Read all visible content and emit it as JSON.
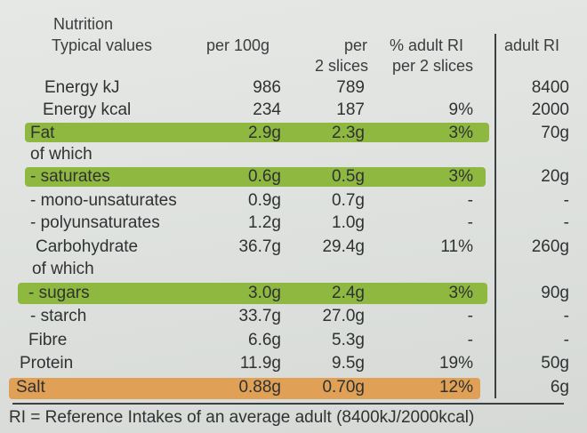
{
  "title": "Nutrition",
  "header": {
    "typical": "Typical values",
    "per100": "per 100g",
    "per2_line1": "per",
    "per2_line2": "2 slices",
    "ri_line1": "% adult RI",
    "ri_line2": "per 2 slices",
    "adult": "adult RI"
  },
  "rows": [
    {
      "name": "Energy kJ",
      "per100": "986",
      "per2": "789",
      "ri": "",
      "adult": "8400"
    },
    {
      "name": "Energy kcal",
      "per100": "234",
      "per2": "187",
      "ri": "9%",
      "adult": "2000"
    },
    {
      "name": "Fat",
      "per100": "2.9g",
      "per2": "2.3g",
      "ri": "3%",
      "adult": "70g"
    },
    {
      "name": "of which",
      "per100": "",
      "per2": "",
      "ri": "",
      "adult": ""
    },
    {
      "name": "- saturates",
      "per100": "0.6g",
      "per2": "0.5g",
      "ri": "3%",
      "adult": "20g"
    },
    {
      "name": "- mono-unsaturates",
      "per100": "0.9g",
      "per2": "0.7g",
      "ri": "-",
      "adult": "-"
    },
    {
      "name": "- polyunsaturates",
      "per100": "1.2g",
      "per2": "1.0g",
      "ri": "-",
      "adult": "-"
    },
    {
      "name": "Carbohydrate",
      "per100": "36.7g",
      "per2": "29.4g",
      "ri": "11%",
      "adult": "260g"
    },
    {
      "name": "of which",
      "per100": "",
      "per2": "",
      "ri": "",
      "adult": ""
    },
    {
      "name": "- sugars",
      "per100": "3.0g",
      "per2": "2.4g",
      "ri": "3%",
      "adult": "90g"
    },
    {
      "name": "- starch",
      "per100": "33.7g",
      "per2": "27.0g",
      "ri": "-",
      "adult": "-"
    },
    {
      "name": "Fibre",
      "per100": "6.6g",
      "per2": "5.3g",
      "ri": "-",
      "adult": "-"
    },
    {
      "name": "Protein",
      "per100": "11.9g",
      "per2": "9.5g",
      "ri": "19%",
      "adult": "50g"
    },
    {
      "name": "Salt",
      "per100": "0.88g",
      "per2": "0.70g",
      "ri": "12%",
      "adult": "6g"
    }
  ],
  "footer": "RI = Reference Intakes of an average adult (8400kJ/2000kcal)",
  "colors": {
    "green_band": "#8fb840",
    "orange_band": "#e0a055"
  }
}
